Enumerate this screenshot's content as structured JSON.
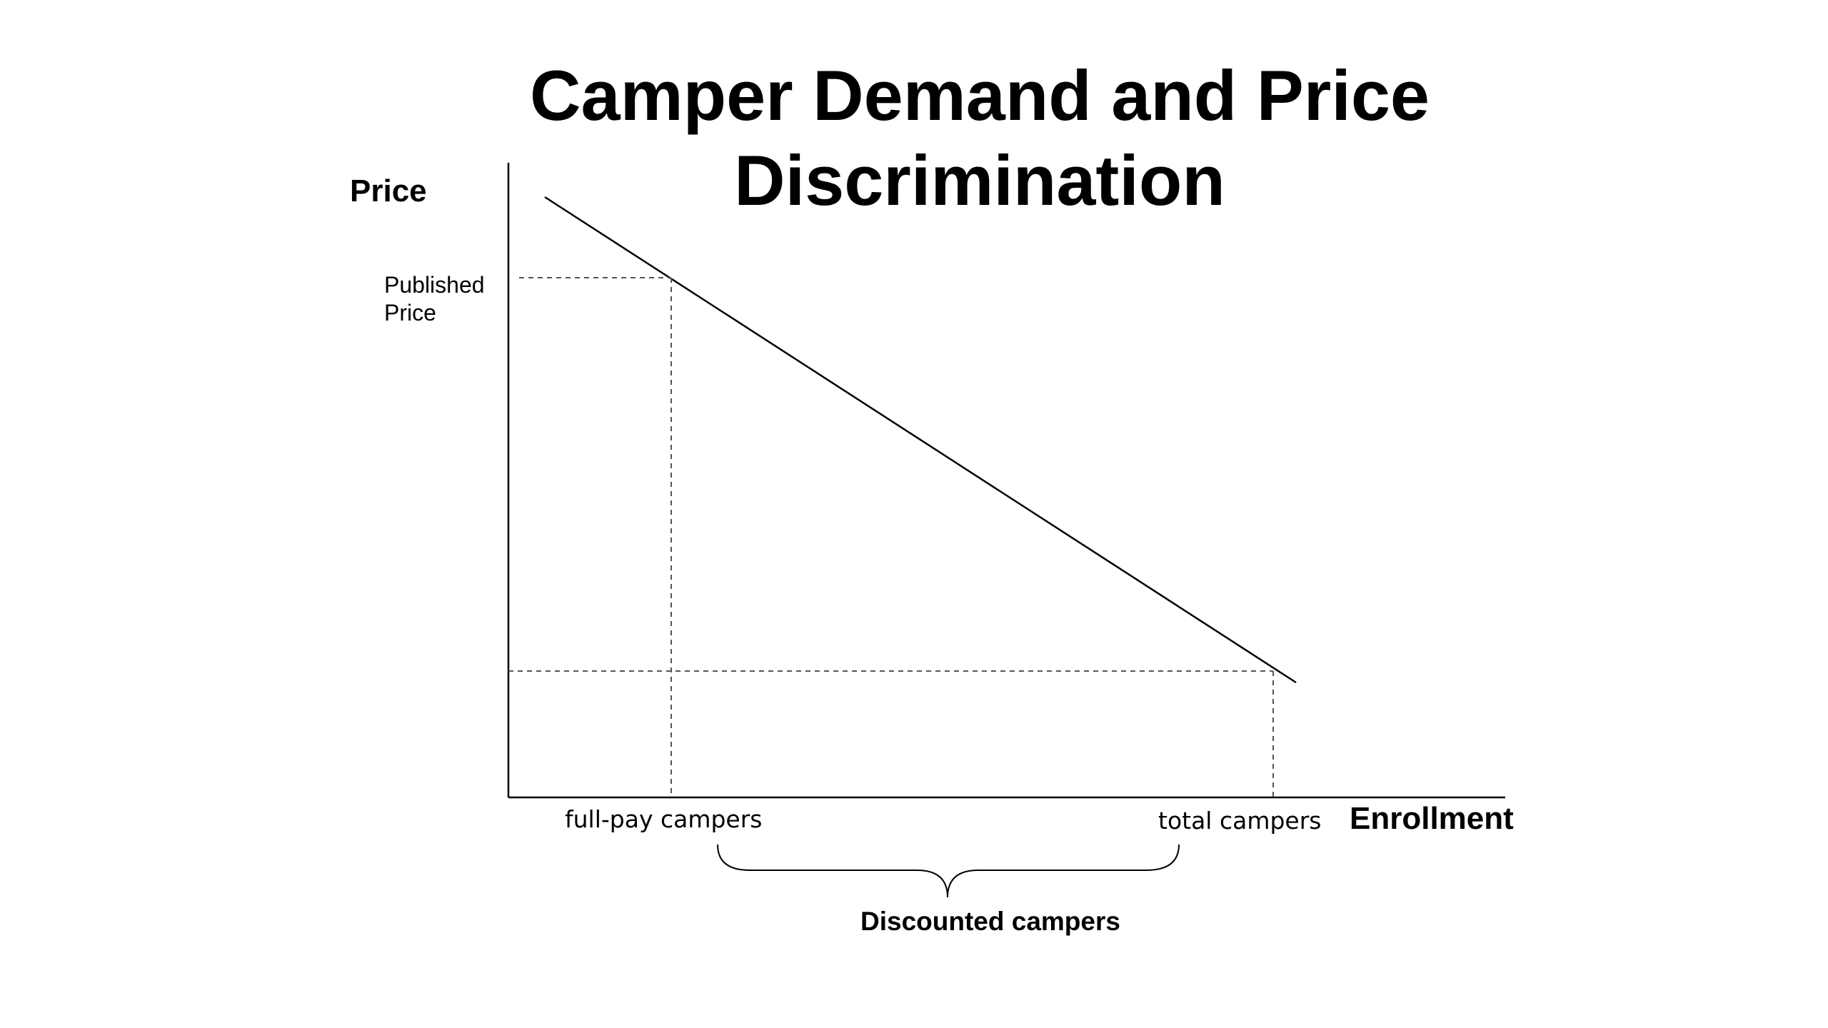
{
  "title": {
    "line1": "Camper Demand and Price",
    "line2": "Discrimination"
  },
  "axes": {
    "y_label": "Price",
    "x_label": "Enrollment"
  },
  "marks": {
    "published_price_line1": "Published",
    "published_price_line2": "Price",
    "full_pay": "full-pay campers",
    "total": "total campers"
  },
  "brace": {
    "label": "Discounted campers"
  },
  "colors": {
    "line": "#000000",
    "dashed": "#555555",
    "background": "#ffffff"
  }
}
